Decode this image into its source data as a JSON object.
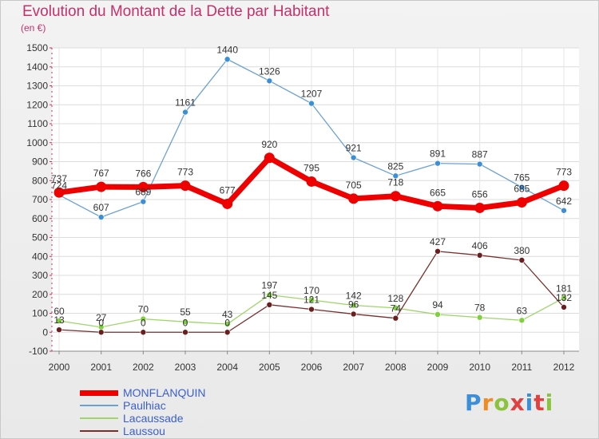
{
  "title": "Evolution du Montant de la Dette par Habitant",
  "unit": "(en €)",
  "logo": {
    "text": "Proxiti",
    "colors": [
      "#3a8fd8",
      "#f08a24",
      "#8ac33c",
      "#e04040",
      "#3a8fd8",
      "#e04040",
      "#8ac33c"
    ]
  },
  "chart_data": {
    "type": "line",
    "title": "Evolution du Montant de la Dette par Habitant",
    "ylabel": "(en €)",
    "xlabel": "",
    "ylim": [
      -100,
      1500
    ],
    "yticks": [
      "-100",
      "0",
      "100",
      "200",
      "300",
      "400",
      "500",
      "600",
      "700",
      "800",
      "900",
      "1000",
      "1100",
      "1200",
      "1300",
      "1400",
      "1500"
    ],
    "categories": [
      "2000",
      "2001",
      "2002",
      "2003",
      "2004",
      "2005",
      "2006",
      "2007",
      "2008",
      "2009",
      "2010",
      "2011",
      "2012"
    ],
    "grid": true,
    "legend_position": "bottom-left",
    "series": [
      {
        "name": "MONFLANQUIN",
        "color": "#ee0000",
        "values": [
          737,
          767,
          766,
          773,
          677,
          920,
          795,
          705,
          718,
          665,
          656,
          685,
          773
        ]
      },
      {
        "name": "Paulhiac",
        "color": "#6aa1d3",
        "values": [
          724,
          607,
          689,
          1161,
          1440,
          1326,
          1207,
          921,
          825,
          891,
          887,
          765,
          642
        ]
      },
      {
        "name": "Lacaussade",
        "color": "#9ed66a",
        "values": [
          60,
          27,
          70,
          55,
          43,
          197,
          170,
          142,
          128,
          94,
          78,
          63,
          181
        ]
      },
      {
        "name": "Laussou",
        "color": "#7a2e2e",
        "values": [
          13,
          0,
          0,
          0,
          0,
          145,
          121,
          96,
          74,
          427,
          406,
          380,
          132
        ]
      }
    ]
  }
}
